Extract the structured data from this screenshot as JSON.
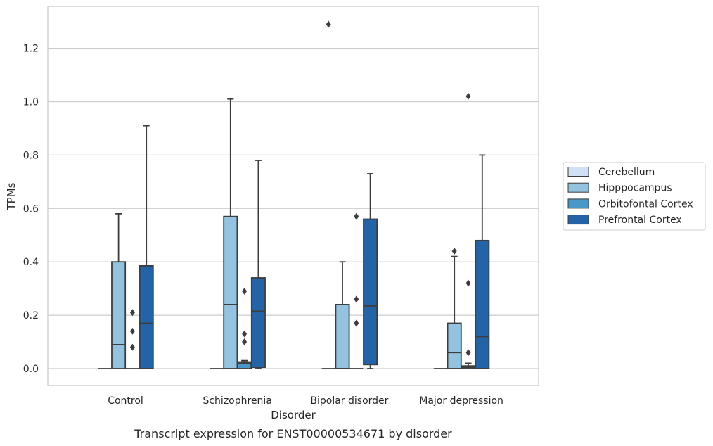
{
  "chart_data": {
    "type": "box",
    "caption": "Transcript expression for ENST00000534671 by disorder",
    "xlabel": "Disorder",
    "ylabel": "TPMs",
    "ylim": [
      -0.065,
      1.36
    ],
    "yticks": [
      0.0,
      0.2,
      0.4,
      0.6,
      0.8,
      1.0,
      1.2
    ],
    "ytick_labels": [
      "0.0",
      "0.2",
      "0.4",
      "0.6",
      "0.8",
      "1.0",
      "1.2"
    ],
    "grid": "horizontal",
    "legend_position": "right",
    "categories": [
      "Control",
      "Schizophrenia",
      "Bipolar disorder",
      "Major depression"
    ],
    "series": [
      {
        "name": "Cerebellum",
        "color": "#cfe1f2",
        "boxes": [
          {
            "min": 0,
            "q1": 0,
            "median": 0,
            "q3": 0,
            "max": 0,
            "outliers": []
          },
          {
            "min": 0,
            "q1": 0,
            "median": 0,
            "q3": 0,
            "max": 0,
            "outliers": []
          },
          {
            "min": 0,
            "q1": 0,
            "median": 0,
            "q3": 0,
            "max": 0,
            "outliers": [
              1.29
            ]
          },
          {
            "min": 0,
            "q1": 0,
            "median": 0,
            "q3": 0,
            "max": 0,
            "outliers": []
          }
        ]
      },
      {
        "name": "Hipppocampus",
        "color": "#93c3df",
        "boxes": [
          {
            "min": 0,
            "q1": 0,
            "median": 0.09,
            "q3": 0.4,
            "max": 0.58,
            "outliers": []
          },
          {
            "min": 0,
            "q1": 0,
            "median": 0.24,
            "q3": 0.57,
            "max": 1.01,
            "outliers": []
          },
          {
            "min": 0,
            "q1": 0,
            "median": 0,
            "q3": 0.24,
            "max": 0.4,
            "outliers": []
          },
          {
            "min": 0,
            "q1": 0,
            "median": 0.06,
            "q3": 0.17,
            "max": 0.42,
            "outliers": [
              0.44
            ]
          }
        ]
      },
      {
        "name": "Orbitofontal Cortex",
        "color": "#4a98c9",
        "boxes": [
          {
            "min": 0,
            "q1": 0,
            "median": 0,
            "q3": 0,
            "max": 0,
            "outliers": [
              0.08,
              0.14,
              0.21
            ]
          },
          {
            "min": 0,
            "q1": 0,
            "median": 0.02,
            "q3": 0.025,
            "max": 0.03,
            "outliers": [
              0.1,
              0.13,
              0.29
            ]
          },
          {
            "min": 0,
            "q1": 0,
            "median": 0,
            "q3": 0,
            "max": 0,
            "outliers": [
              0.17,
              0.26,
              0.57
            ]
          },
          {
            "min": 0,
            "q1": 0,
            "median": 0.005,
            "q3": 0.01,
            "max": 0.02,
            "outliers": [
              0.06,
              0.32,
              1.02
            ]
          }
        ]
      },
      {
        "name": "Prefrontal Cortex",
        "color": "#2363a6",
        "boxes": [
          {
            "min": 0,
            "q1": 0,
            "median": 0.17,
            "q3": 0.385,
            "max": 0.91,
            "outliers": []
          },
          {
            "min": 0,
            "q1": 0.005,
            "median": 0.215,
            "q3": 0.34,
            "max": 0.78,
            "outliers": []
          },
          {
            "min": 0,
            "q1": 0.015,
            "median": 0.235,
            "q3": 0.56,
            "max": 0.73,
            "outliers": []
          },
          {
            "min": 0,
            "q1": 0,
            "median": 0.12,
            "q3": 0.48,
            "max": 0.8,
            "outliers": []
          }
        ]
      }
    ]
  }
}
